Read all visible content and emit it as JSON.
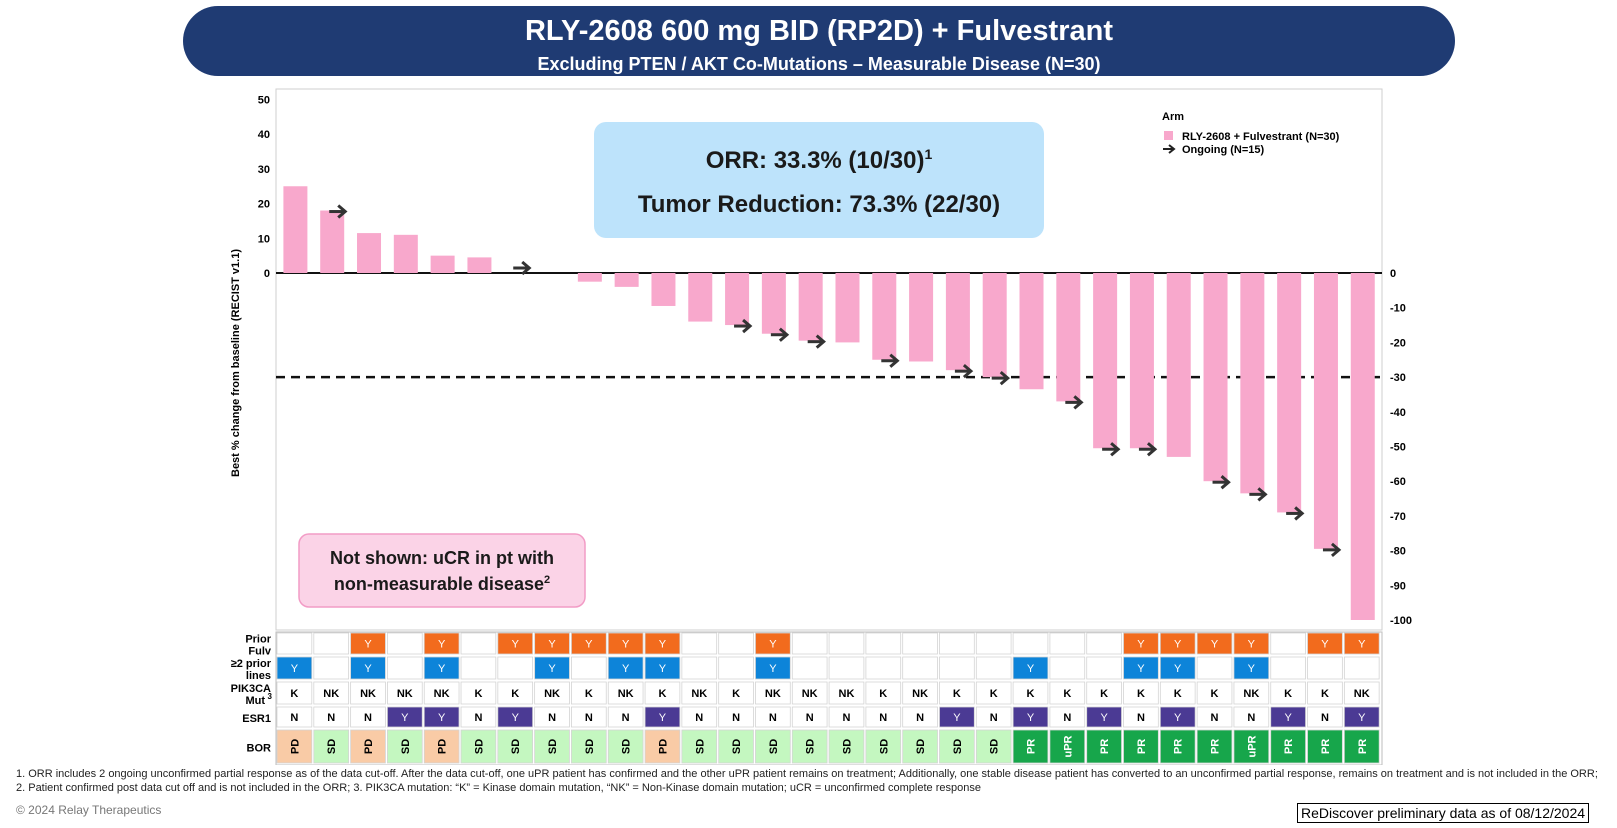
{
  "title": "RLY-2608 600 mg BID (RP2D) + Fulvestrant",
  "subtitle": "Excluding PTEN / AKT Co-Mutations – Measurable Disease (N=30)",
  "orr_box": {
    "orr_text": "ORR: 33.3% (10/30)",
    "orr_sup": "1",
    "tumor_text": "Tumor Reduction: 73.3% (22/30)"
  },
  "not_shown_box": {
    "line1": "Not shown: uCR in pt with",
    "line2": "non-measurable disease",
    "sup": "2"
  },
  "footnote": "1. ORR includes 2 ongoing unconfirmed partial response as of the data cut-off. After the data cut-off, one uPR patient has confirmed and the other uPR patient remains on treatment; Additionally, one stable disease patient has converted to an unconfirmed partial response, remains on treatment and is not included in the ORR; 2. Patient confirmed post data cut off and is not included in the ORR;  3. PIK3CA mutation: “K” = Kinase domain mutation, “NK” = Non-Kinase domain mutation; uCR = unconfirmed complete response",
  "copyright": "© 2024 Relay Therapeutics",
  "data_note": "ReDiscover preliminary data as of 08/12/2024",
  "colors": {
    "bar": "#f8a8cc",
    "banner": "#1f3b73",
    "orr_box": "#bde3fb",
    "not_shown_box": "#fbd3e7",
    "fulv_y": "#f26b1d",
    "lines_y": "#0d84d9",
    "esr1_y": "#4b3a94",
    "bor_pd": "#f9cba6",
    "bor_sd": "#c4f7c0",
    "bor_pr": "#17a64b"
  },
  "chart_data": {
    "type": "bar",
    "ylabel": "Best % change from baseline (RECIST v1.1)",
    "ylim": [
      -100,
      50
    ],
    "left_ticks": [
      50,
      40,
      30,
      20,
      10,
      0
    ],
    "right_ticks": [
      0,
      -10,
      -20,
      -30,
      -40,
      -50,
      -60,
      -70,
      -80,
      -90,
      -100
    ],
    "threshold": -30,
    "legend": {
      "title": "Arm",
      "series_label": "RLY-2608 + Fulvestrant (N=30)",
      "ongoing_label": "Ongoing (N=15)",
      "position": "top-right"
    },
    "values": [
      25,
      18,
      11.5,
      11,
      5,
      4.5,
      0,
      0,
      -2.5,
      -4,
      -9.5,
      -14,
      -15,
      -17.5,
      -19.5,
      -20,
      -25,
      -25.5,
      -28,
      -30,
      -33.5,
      -37,
      -50.5,
      -50.5,
      -53,
      -60,
      -63.5,
      -69,
      -79.5,
      -100
    ],
    "ongoing": [
      false,
      true,
      false,
      false,
      false,
      false,
      true,
      false,
      false,
      false,
      false,
      false,
      true,
      true,
      true,
      false,
      true,
      false,
      true,
      true,
      false,
      true,
      true,
      true,
      false,
      true,
      true,
      true,
      true,
      false
    ],
    "table": {
      "row_labels": [
        {
          "line1": "Prior",
          "line2": "Fulv",
          "sup": ""
        },
        {
          "line1": "≥2 prior",
          "line2": "lines",
          "sup": ""
        },
        {
          "line1": "PIK3CA",
          "line2": "Mut",
          "sup": "3"
        },
        {
          "line1": "ESR1",
          "line2": "",
          "sup": ""
        },
        {
          "line1": "BOR",
          "line2": "",
          "sup": ""
        }
      ],
      "prior_fulv": [
        "",
        "",
        "Y",
        "",
        "Y",
        "",
        "Y",
        "Y",
        "Y",
        "Y",
        "Y",
        "",
        "",
        "Y",
        "",
        "",
        "",
        "",
        "",
        "",
        "",
        "",
        "",
        "Y",
        "Y",
        "Y",
        "Y",
        "",
        "Y",
        "Y"
      ],
      "prior_lines": [
        "Y",
        "",
        "Y",
        "",
        "Y",
        "",
        "",
        "Y",
        "",
        "Y",
        "Y",
        "",
        "",
        "Y",
        "",
        "",
        "",
        "",
        "",
        "",
        "Y",
        "",
        "",
        "Y",
        "Y",
        "",
        "Y",
        "",
        "",
        ""
      ],
      "pik3ca": [
        "K",
        "NK",
        "NK",
        "NK",
        "NK",
        "K",
        "K",
        "NK",
        "K",
        "NK",
        "K",
        "NK",
        "K",
        "NK",
        "NK",
        "NK",
        "K",
        "NK",
        "K",
        "K",
        "K",
        "K",
        "K",
        "K",
        "K",
        "K",
        "NK",
        "K",
        "K",
        "NK"
      ],
      "esr1": [
        "N",
        "N",
        "N",
        "Y",
        "Y",
        "N",
        "Y",
        "N",
        "N",
        "N",
        "Y",
        "N",
        "N",
        "N",
        "N",
        "N",
        "N",
        "N",
        "Y",
        "N",
        "Y",
        "N",
        "Y",
        "N",
        "Y",
        "N",
        "N",
        "Y",
        "N",
        "Y"
      ],
      "bor": [
        "PD",
        "SD",
        "PD",
        "SD",
        "PD",
        "SD",
        "SD",
        "SD",
        "SD",
        "SD",
        "PD",
        "SD",
        "SD",
        "SD",
        "SD",
        "SD",
        "SD",
        "SD",
        "SD",
        "SD",
        "PR",
        "uPR",
        "PR",
        "PR",
        "PR",
        "PR",
        "uPR",
        "PR",
        "PR",
        "PR"
      ]
    }
  }
}
